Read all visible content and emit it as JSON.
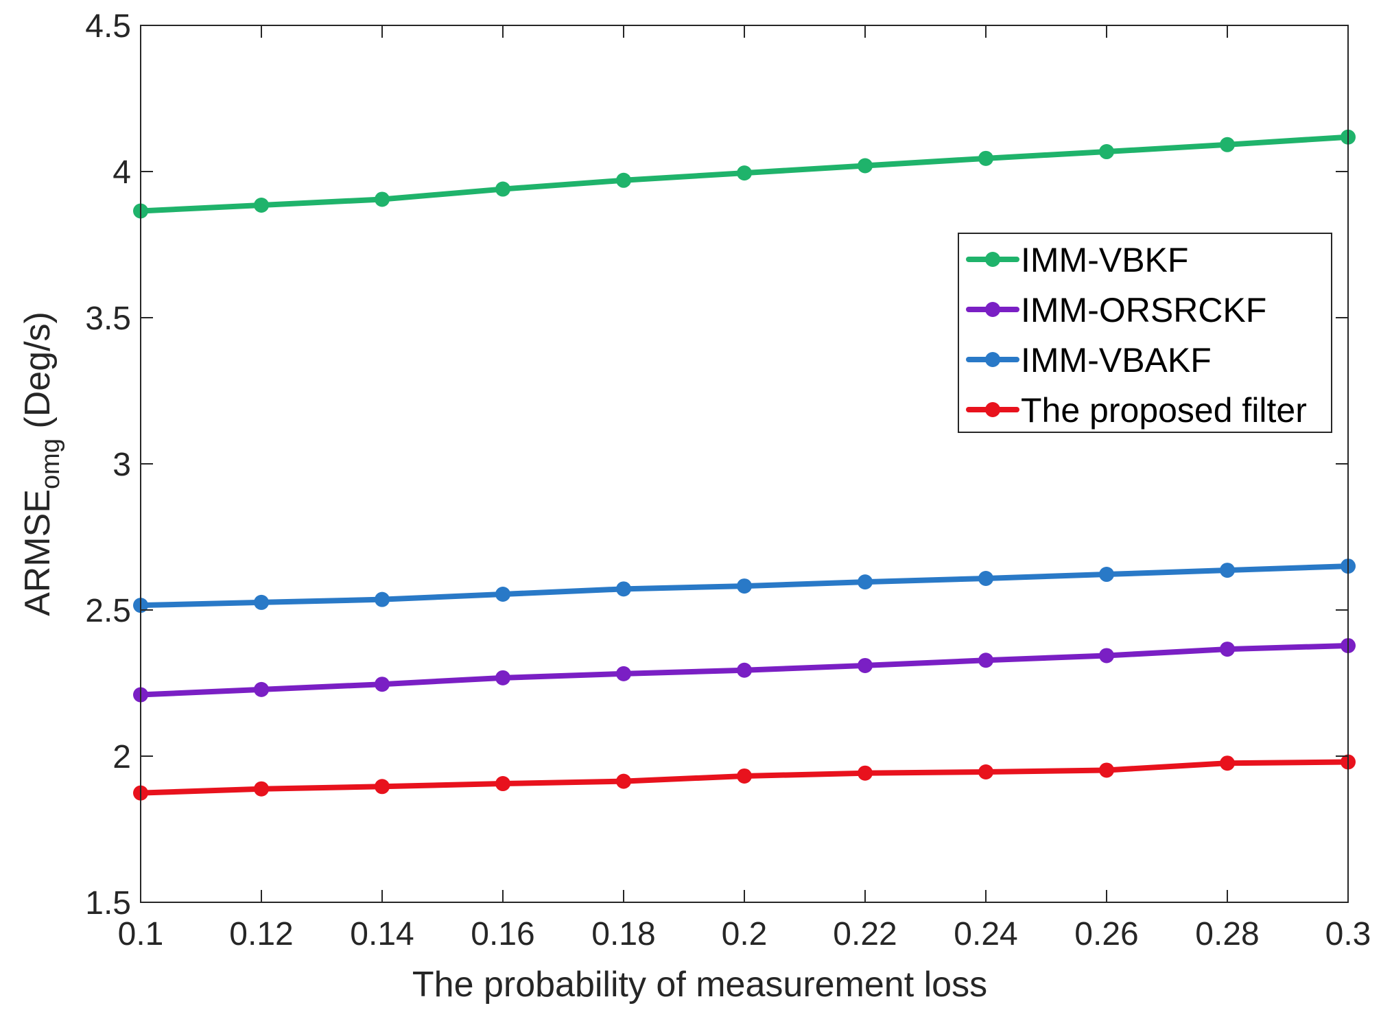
{
  "chart_data": {
    "type": "line",
    "title": "",
    "xlabel": "The probability of measurement loss",
    "ylabel_main": "ARMSE",
    "ylabel_sub": "omg",
    "ylabel_unit": " (Deg/s)",
    "xlim": [
      0.1,
      0.3
    ],
    "ylim": [
      1.5,
      4.5
    ],
    "x": [
      0.1,
      0.12,
      0.14,
      0.16,
      0.18,
      0.2,
      0.22,
      0.24,
      0.26,
      0.28,
      0.3
    ],
    "x_tick_labels": [
      "0.1",
      "0.12",
      "0.14",
      "0.16",
      "0.18",
      "0.2",
      "0.22",
      "0.24",
      "0.26",
      "0.28",
      "0.3"
    ],
    "y_ticks": [
      1.5,
      2,
      2.5,
      3,
      3.5,
      4,
      4.5
    ],
    "y_tick_labels": [
      "1.5",
      "2",
      "2.5",
      "3",
      "3.5",
      "4",
      "4.5"
    ],
    "grid": false,
    "legend_position": "right",
    "series": [
      {
        "name": "IMM-VBKF",
        "color": "#1fb36b",
        "values": [
          3.865,
          3.885,
          3.905,
          3.94,
          3.97,
          3.995,
          4.02,
          4.045,
          4.068,
          4.092,
          4.118
        ]
      },
      {
        "name": "IMM-ORSRCKF",
        "color": "#7a1fc4",
        "values": [
          2.21,
          2.228,
          2.246,
          2.268,
          2.282,
          2.294,
          2.31,
          2.328,
          2.344,
          2.366,
          2.378
        ]
      },
      {
        "name": "IMM-VBAKF",
        "color": "#2979c7",
        "values": [
          2.516,
          2.526,
          2.536,
          2.554,
          2.572,
          2.582,
          2.596,
          2.608,
          2.622,
          2.636,
          2.65
        ]
      },
      {
        "name": "The proposed filter",
        "color": "#e8121d",
        "values": [
          1.874,
          1.888,
          1.896,
          1.906,
          1.914,
          1.932,
          1.942,
          1.946,
          1.952,
          1.976,
          1.98
        ]
      }
    ]
  }
}
